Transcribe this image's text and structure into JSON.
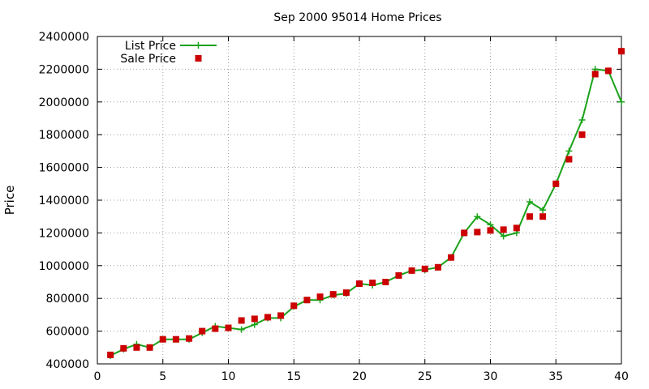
{
  "chart_data": {
    "type": "line",
    "title": "Sep 2000 95014 Home Prices",
    "xlabel": "",
    "ylabel": "Price",
    "xlim": [
      0,
      40
    ],
    "ylim": [
      400000,
      2400000
    ],
    "xticks": [
      0,
      5,
      10,
      15,
      20,
      25,
      30,
      35,
      40
    ],
    "yticks": [
      400000,
      600000,
      800000,
      1000000,
      1200000,
      1400000,
      1600000,
      1800000,
      2000000,
      2200000,
      2400000
    ],
    "grid": true,
    "legend_position": "top-left",
    "series": [
      {
        "name": "List Price",
        "style": "line+cross",
        "color": "#1aa31a",
        "x": [
          1,
          2,
          3,
          4,
          5,
          6,
          7,
          8,
          9,
          10,
          11,
          12,
          13,
          14,
          15,
          16,
          17,
          18,
          19,
          20,
          21,
          22,
          23,
          24,
          25,
          26,
          27,
          28,
          29,
          30,
          31,
          32,
          33,
          34,
          35,
          36,
          37,
          38,
          39,
          40
        ],
        "y": [
          450000,
          490000,
          520000,
          500000,
          550000,
          550000,
          550000,
          590000,
          630000,
          620000,
          610000,
          640000,
          680000,
          680000,
          750000,
          790000,
          790000,
          820000,
          830000,
          890000,
          880000,
          900000,
          940000,
          970000,
          975000,
          990000,
          1050000,
          1200000,
          1300000,
          1250000,
          1180000,
          1200000,
          1390000,
          1340000,
          1500000,
          1700000,
          1890000,
          2200000,
          2190000,
          2000000
        ]
      },
      {
        "name": "Sale Price",
        "style": "square-points",
        "color": "#cc0000",
        "x": [
          1,
          2,
          3,
          4,
          5,
          6,
          7,
          8,
          9,
          10,
          11,
          12,
          13,
          14,
          15,
          16,
          17,
          18,
          19,
          20,
          21,
          22,
          23,
          24,
          25,
          26,
          27,
          28,
          29,
          30,
          31,
          32,
          33,
          34,
          35,
          36,
          37,
          38,
          39,
          40
        ],
        "y": [
          455000,
          495000,
          500000,
          500000,
          550000,
          550000,
          555000,
          600000,
          615000,
          620000,
          665000,
          675000,
          685000,
          695000,
          755000,
          790000,
          810000,
          825000,
          835000,
          890000,
          895000,
          900000,
          940000,
          970000,
          980000,
          990000,
          1050000,
          1200000,
          1205000,
          1215000,
          1220000,
          1230000,
          1300000,
          1300000,
          1500000,
          1650000,
          1800000,
          2170000,
          2190000,
          2310000
        ]
      }
    ]
  }
}
